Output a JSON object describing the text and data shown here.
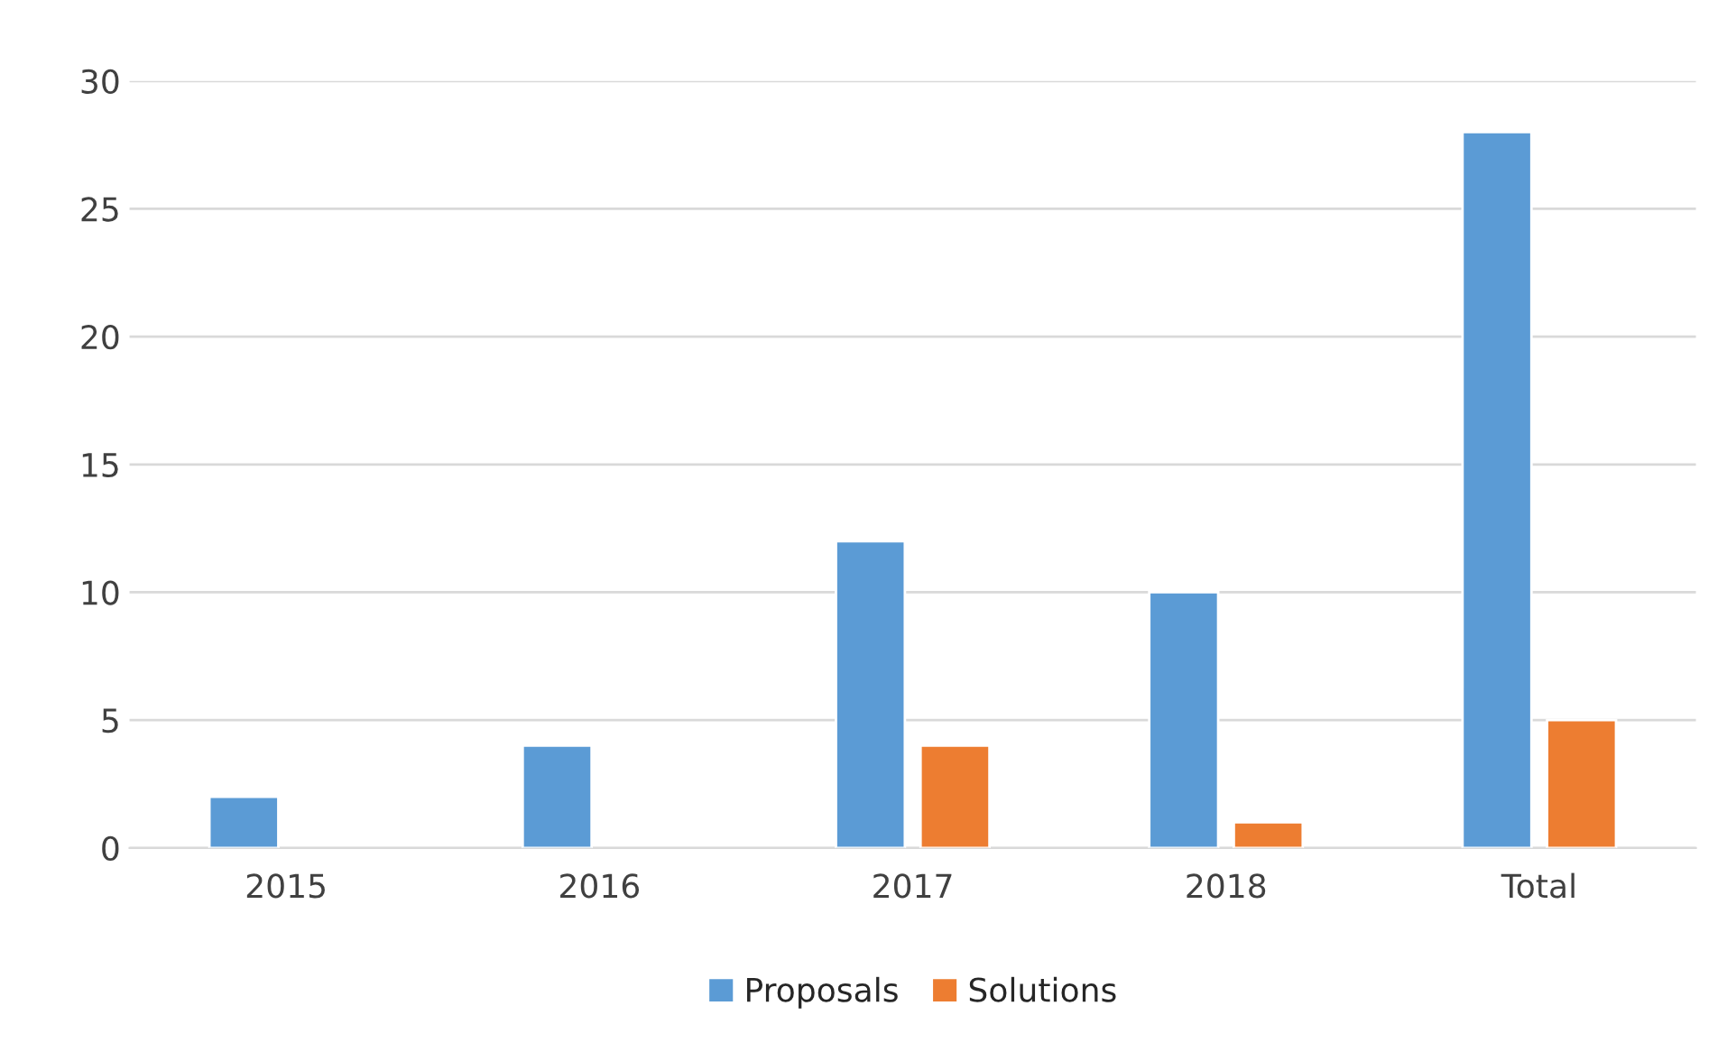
{
  "chart_data": {
    "type": "bar",
    "categories": [
      "2015",
      "2016",
      "2017",
      "2018",
      "Total"
    ],
    "series": [
      {
        "name": "Proposals",
        "color": "#5b9bd5",
        "values": [
          2,
          4,
          12,
          10,
          28
        ]
      },
      {
        "name": "Solutions",
        "color": "#ed7d31",
        "values": [
          null,
          null,
          4,
          1,
          5
        ]
      }
    ],
    "ylim": [
      0,
      30
    ],
    "yticks": [
      0,
      5,
      10,
      15,
      20,
      25,
      30
    ],
    "grid": "y",
    "legend": "bottom"
  }
}
